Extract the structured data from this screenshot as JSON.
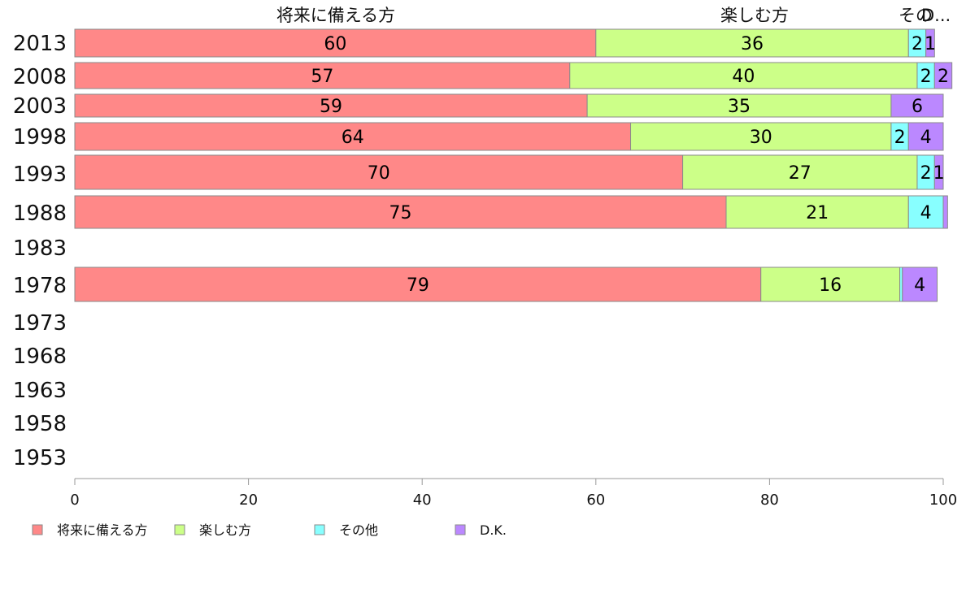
{
  "chart_data": {
    "type": "bar",
    "orientation": "horizontal-stacked",
    "years": [
      "2013",
      "2008",
      "2003",
      "1998",
      "1993",
      "1988",
      "1983",
      "1978",
      "1973",
      "1968",
      "1963",
      "1958",
      "1953"
    ],
    "series": [
      {
        "name": "将来に備える方",
        "color": "#ff8888",
        "values": [
          60,
          57,
          59,
          64,
          70,
          75,
          null,
          79,
          null,
          null,
          null,
          null,
          null
        ],
        "labels": [
          "60",
          "57",
          "59",
          "64",
          "70",
          "75",
          "",
          "79",
          "",
          "",
          "",
          "",
          ""
        ]
      },
      {
        "name": "楽しむ方",
        "color": "#ccff88",
        "values": [
          36,
          40,
          35,
          30,
          27,
          21,
          null,
          16,
          null,
          null,
          null,
          null,
          null
        ],
        "labels": [
          "36",
          "40",
          "35",
          "30",
          "27",
          "21",
          "",
          "16",
          "",
          "",
          "",
          "",
          ""
        ]
      },
      {
        "name": "その他",
        "color": "#88ffff",
        "values": [
          2,
          2,
          0,
          2,
          2,
          4,
          null,
          0.3,
          null,
          null,
          null,
          null,
          null
        ],
        "labels": [
          "2",
          "2",
          "",
          "2",
          "2",
          "4",
          "",
          "",
          "",
          "",
          "",
          "",
          ""
        ]
      },
      {
        "name": "D.K.",
        "color": "#bb88ff",
        "values": [
          1,
          2,
          6,
          4,
          1,
          0.5,
          null,
          4,
          null,
          null,
          null,
          null,
          null
        ],
        "labels": [
          "1",
          "2",
          "6",
          "4",
          "1",
          "",
          "",
          "4",
          "",
          "",
          "",
          "",
          ""
        ]
      }
    ],
    "top_headers": [
      "将来に備える方",
      "楽しむ方",
      "その",
      "D..."
    ],
    "x_ticks": [
      "0",
      "20",
      "40",
      "60",
      "80",
      "100"
    ],
    "xlim": [
      0,
      100
    ],
    "legend_position": "bottom-left",
    "grid": false
  }
}
